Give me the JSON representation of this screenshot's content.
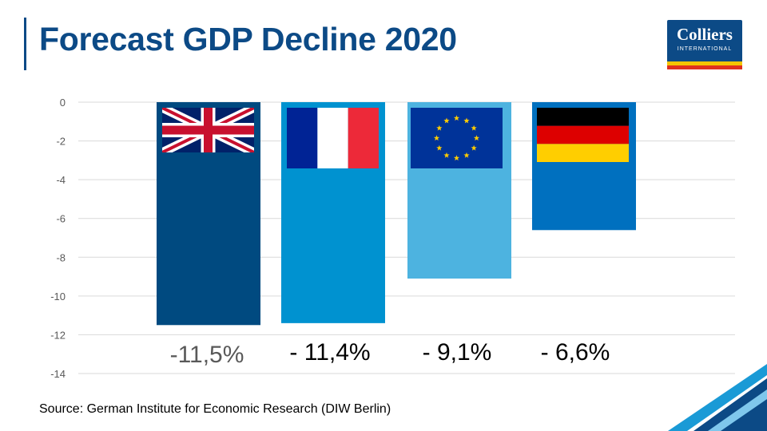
{
  "slide": {
    "title": "Forecast GDP Decline 2020",
    "source": "Source: German Institute for Economic Research (DIW Berlin)"
  },
  "logo": {
    "name": "Colliers",
    "subtitle": "INTERNATIONAL"
  },
  "colors": {
    "title": "#0c4a86",
    "uk_bar": "#004a80",
    "france_bar": "#0092d0",
    "eu_bar": "#4db3e0",
    "germany_bar": "#0070bf",
    "gridline": "#d9d9d9"
  },
  "chart_data": {
    "type": "bar",
    "categories": [
      "United Kingdom",
      "France",
      "Euro area",
      "Germany"
    ],
    "values": [
      -11.5,
      -11.4,
      -9.1,
      -6.6
    ],
    "value_labels": [
      "-11,5%",
      "- 11,4%",
      "- 9,1%",
      "- 6,6%"
    ],
    "flags": [
      "uk-flag",
      "france-flag",
      "eu-flag",
      "germany-flag"
    ],
    "ylim": [
      -14,
      0
    ],
    "yticks": [
      0,
      -2,
      -4,
      -6,
      -8,
      -10,
      -12,
      -14
    ],
    "ytick_labels": [
      "0",
      "-2",
      "-4",
      "-6",
      "-8",
      "-10",
      "-12",
      "-14"
    ],
    "grid": true,
    "legend": false
  }
}
